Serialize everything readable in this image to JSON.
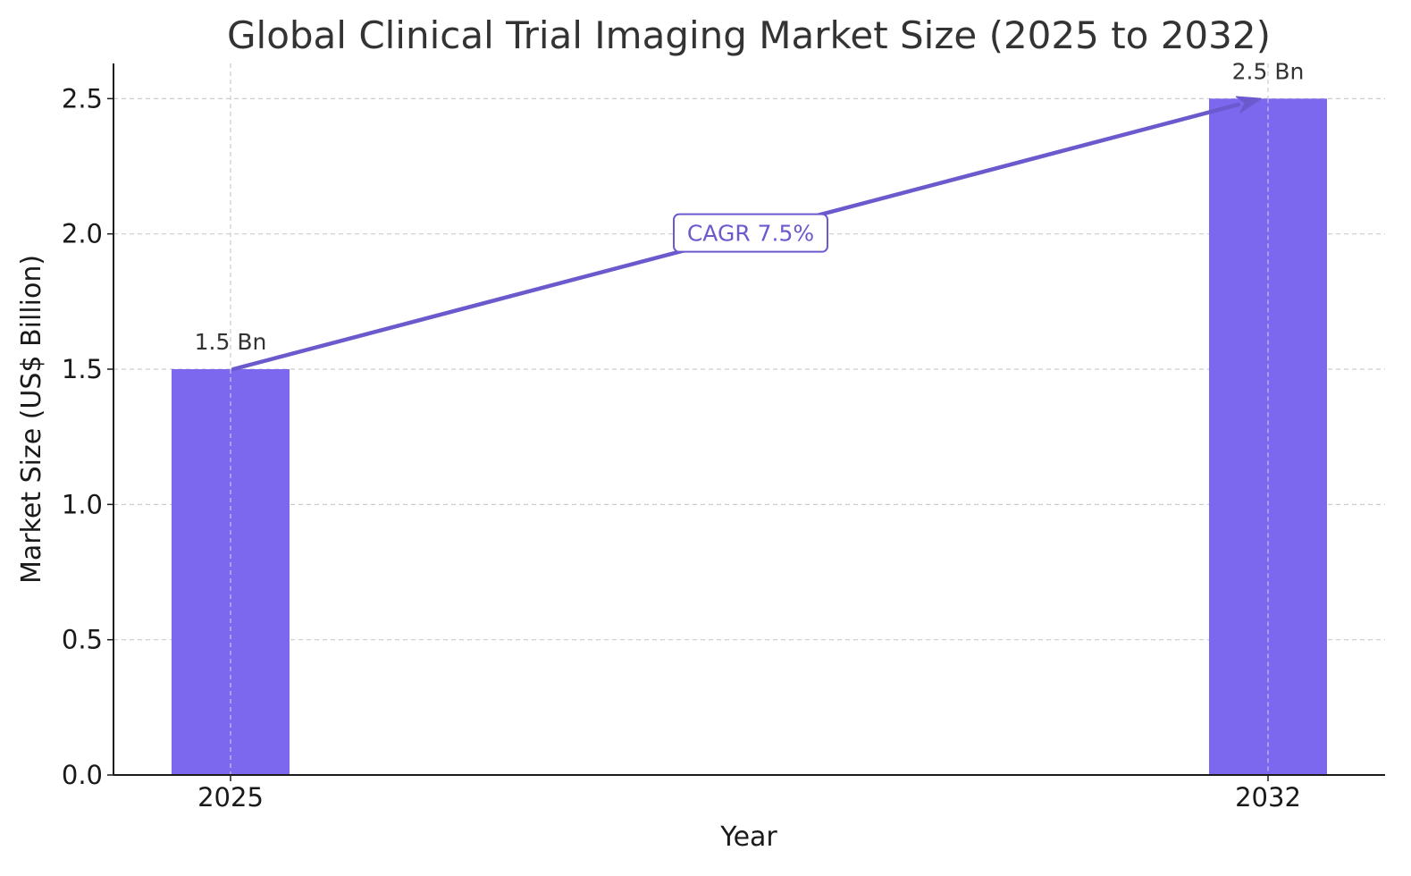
{
  "chart_data": {
    "type": "bar",
    "title": "Global Clinical Trial Imaging Market Size (2025 to 2032)",
    "xlabel": "Year",
    "ylabel": "Market Size (US$ Billion)",
    "categories": [
      "2025",
      "2032"
    ],
    "values": [
      1.5,
      2.5
    ],
    "data_labels": [
      "1.5 Bn",
      "2.5 Bn"
    ],
    "ylim": [
      0,
      2.63
    ],
    "yticks": [
      0.0,
      0.5,
      1.0,
      1.5,
      2.0,
      2.5
    ],
    "ytick_labels": [
      "0.0",
      "0.5",
      "1.0",
      "1.5",
      "2.0",
      "2.5"
    ],
    "grid": true,
    "annotation": {
      "text": "CAGR 7.5%",
      "from": {
        "category": "2025",
        "value": 1.5
      },
      "to": {
        "category": "2032",
        "value": 2.5
      }
    },
    "colors": {
      "bar": "#7B68EE",
      "arrow": "#6A5ACD",
      "grid": "#cccccc",
      "axis": "#1a1a1a"
    }
  }
}
